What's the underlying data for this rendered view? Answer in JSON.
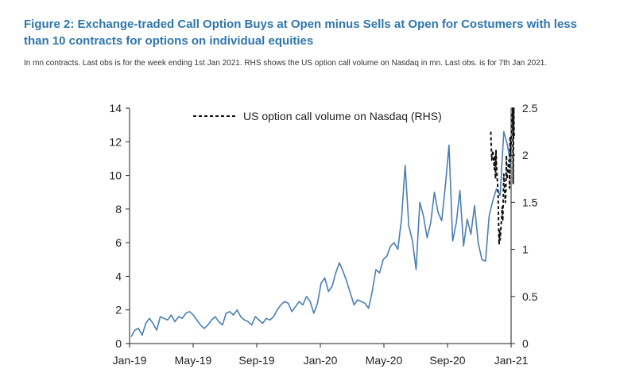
{
  "figure": {
    "title": "Figure 2: Exchange-traded Call Option Buys at Open minus Sells at Open for Costumers with less than 10 contracts for options on individual equities",
    "note": "In mn contracts. Last obs is for the week ending 1st Jan 2021. RHS shows the US option call volume on Nasdaq in mn. Last obs. is for 7th Jan 2021."
  },
  "chart_data": {
    "type": "line",
    "title": "",
    "xlabel": "",
    "ylabel": "",
    "x_tick_labels": [
      "Jan-19",
      "May-19",
      "Sep-19",
      "Jan-20",
      "May-20",
      "Sep-20",
      "Jan-21"
    ],
    "y_left": {
      "lim": [
        0,
        14
      ],
      "ticks": [
        0,
        2,
        4,
        6,
        8,
        10,
        12,
        14
      ]
    },
    "y_right": {
      "lim": [
        0,
        2.5
      ],
      "ticks": [
        0,
        0.5,
        1,
        1.5,
        2,
        2.5
      ]
    },
    "grid": false,
    "legend": {
      "position": "top-center",
      "entries": [
        "US option call volume on Nasdaq (RHS)"
      ]
    },
    "colors": {
      "lhs_series": "#4a7fb5",
      "rhs_series": "#111111",
      "axis": "#222222"
    },
    "series": [
      {
        "axis": "left",
        "style": "solid",
        "x": [
          "2019-01-04",
          "2019-01-11",
          "2019-01-18",
          "2019-01-25",
          "2019-02-01",
          "2019-02-08",
          "2019-02-15",
          "2019-02-22",
          "2019-03-01",
          "2019-03-08",
          "2019-03-15",
          "2019-03-22",
          "2019-03-29",
          "2019-04-05",
          "2019-04-12",
          "2019-04-19",
          "2019-04-26",
          "2019-05-03",
          "2019-05-10",
          "2019-05-17",
          "2019-05-24",
          "2019-05-31",
          "2019-06-07",
          "2019-06-14",
          "2019-06-21",
          "2019-06-28",
          "2019-07-05",
          "2019-07-12",
          "2019-07-19",
          "2019-07-26",
          "2019-08-02",
          "2019-08-09",
          "2019-08-16",
          "2019-08-23",
          "2019-08-30",
          "2019-09-06",
          "2019-09-13",
          "2019-09-20",
          "2019-09-27",
          "2019-10-04",
          "2019-10-11",
          "2019-10-18",
          "2019-10-25",
          "2019-11-01",
          "2019-11-08",
          "2019-11-15",
          "2019-11-22",
          "2019-11-29",
          "2019-12-06",
          "2019-12-13",
          "2019-12-20",
          "2019-12-27",
          "2020-01-03",
          "2020-01-10",
          "2020-01-17",
          "2020-01-24",
          "2020-01-31",
          "2020-02-07",
          "2020-02-14",
          "2020-02-21",
          "2020-02-28",
          "2020-03-06",
          "2020-03-13",
          "2020-03-20",
          "2020-03-27",
          "2020-04-03",
          "2020-04-10",
          "2020-04-17",
          "2020-04-24",
          "2020-05-01",
          "2020-05-08",
          "2020-05-15",
          "2020-05-22",
          "2020-05-29",
          "2020-06-05",
          "2020-06-12",
          "2020-06-19",
          "2020-06-26",
          "2020-07-03",
          "2020-07-10",
          "2020-07-17",
          "2020-07-24",
          "2020-07-31",
          "2020-08-07",
          "2020-08-14",
          "2020-08-21",
          "2020-08-28",
          "2020-09-04",
          "2020-09-11",
          "2020-09-18",
          "2020-09-25",
          "2020-10-02",
          "2020-10-09",
          "2020-10-16",
          "2020-10-23",
          "2020-10-30",
          "2020-11-06",
          "2020-11-13",
          "2020-11-20",
          "2020-11-27",
          "2020-12-04",
          "2020-12-11",
          "2020-12-18",
          "2020-12-25",
          "2021-01-01"
        ],
        "values": [
          0.4,
          0.8,
          0.9,
          0.5,
          1.2,
          1.5,
          1.2,
          0.8,
          1.6,
          1.5,
          1.4,
          1.7,
          1.3,
          1.6,
          1.5,
          1.8,
          1.9,
          1.7,
          1.4,
          1.1,
          0.9,
          1.1,
          1.4,
          1.6,
          1.3,
          1.1,
          1.8,
          1.9,
          1.7,
          2.0,
          1.6,
          1.4,
          1.3,
          1.1,
          1.6,
          1.4,
          1.2,
          1.5,
          1.4,
          1.6,
          2.0,
          2.3,
          2.5,
          2.4,
          1.9,
          2.2,
          2.5,
          2.3,
          2.8,
          2.5,
          1.8,
          2.4,
          3.6,
          3.9,
          3.1,
          3.4,
          4.2,
          4.8,
          4.3,
          3.7,
          3.0,
          2.3,
          2.6,
          2.5,
          2.4,
          2.1,
          3.1,
          4.4,
          4.2,
          5.0,
          5.2,
          5.8,
          6.0,
          5.6,
          7.4,
          10.6,
          7.0,
          6.1,
          4.4,
          8.4,
          7.6,
          6.3,
          7.2,
          9.0,
          7.8,
          7.3,
          9.4,
          11.8,
          6.1,
          7.2,
          9.1,
          5.8,
          7.4,
          6.5,
          8.2,
          6.0,
          5.0,
          4.9,
          7.6,
          8.5,
          9.2,
          8.8,
          12.6,
          11.8,
          10.5
        ]
      },
      {
        "axis": "right",
        "style": "dashed",
        "name": "US option call volume on Nasdaq (RHS)",
        "x": [
          "2020-11-23",
          "2020-11-24",
          "2020-11-25",
          "2020-11-27",
          "2020-11-30",
          "2020-12-01",
          "2020-12-02",
          "2020-12-03",
          "2020-12-04",
          "2020-12-07",
          "2020-12-08",
          "2020-12-09",
          "2020-12-10",
          "2020-12-11",
          "2020-12-14",
          "2020-12-15",
          "2020-12-16",
          "2020-12-17",
          "2020-12-18",
          "2020-12-21",
          "2020-12-22",
          "2020-12-23",
          "2020-12-24",
          "2020-12-28",
          "2020-12-29",
          "2020-12-30",
          "2020-12-31",
          "2021-01-04",
          "2021-01-05",
          "2021-01-06",
          "2021-01-07"
        ],
        "values": [
          2.25,
          2.1,
          1.95,
          2.05,
          1.85,
          2.0,
          1.75,
          2.05,
          1.9,
          1.6,
          1.3,
          1.05,
          1.2,
          1.1,
          1.35,
          1.45,
          1.3,
          1.55,
          1.8,
          1.5,
          1.6,
          2.0,
          1.75,
          1.95,
          1.65,
          2.2,
          2.0,
          2.5,
          1.7,
          2.5,
          2.2
        ]
      }
    ]
  }
}
